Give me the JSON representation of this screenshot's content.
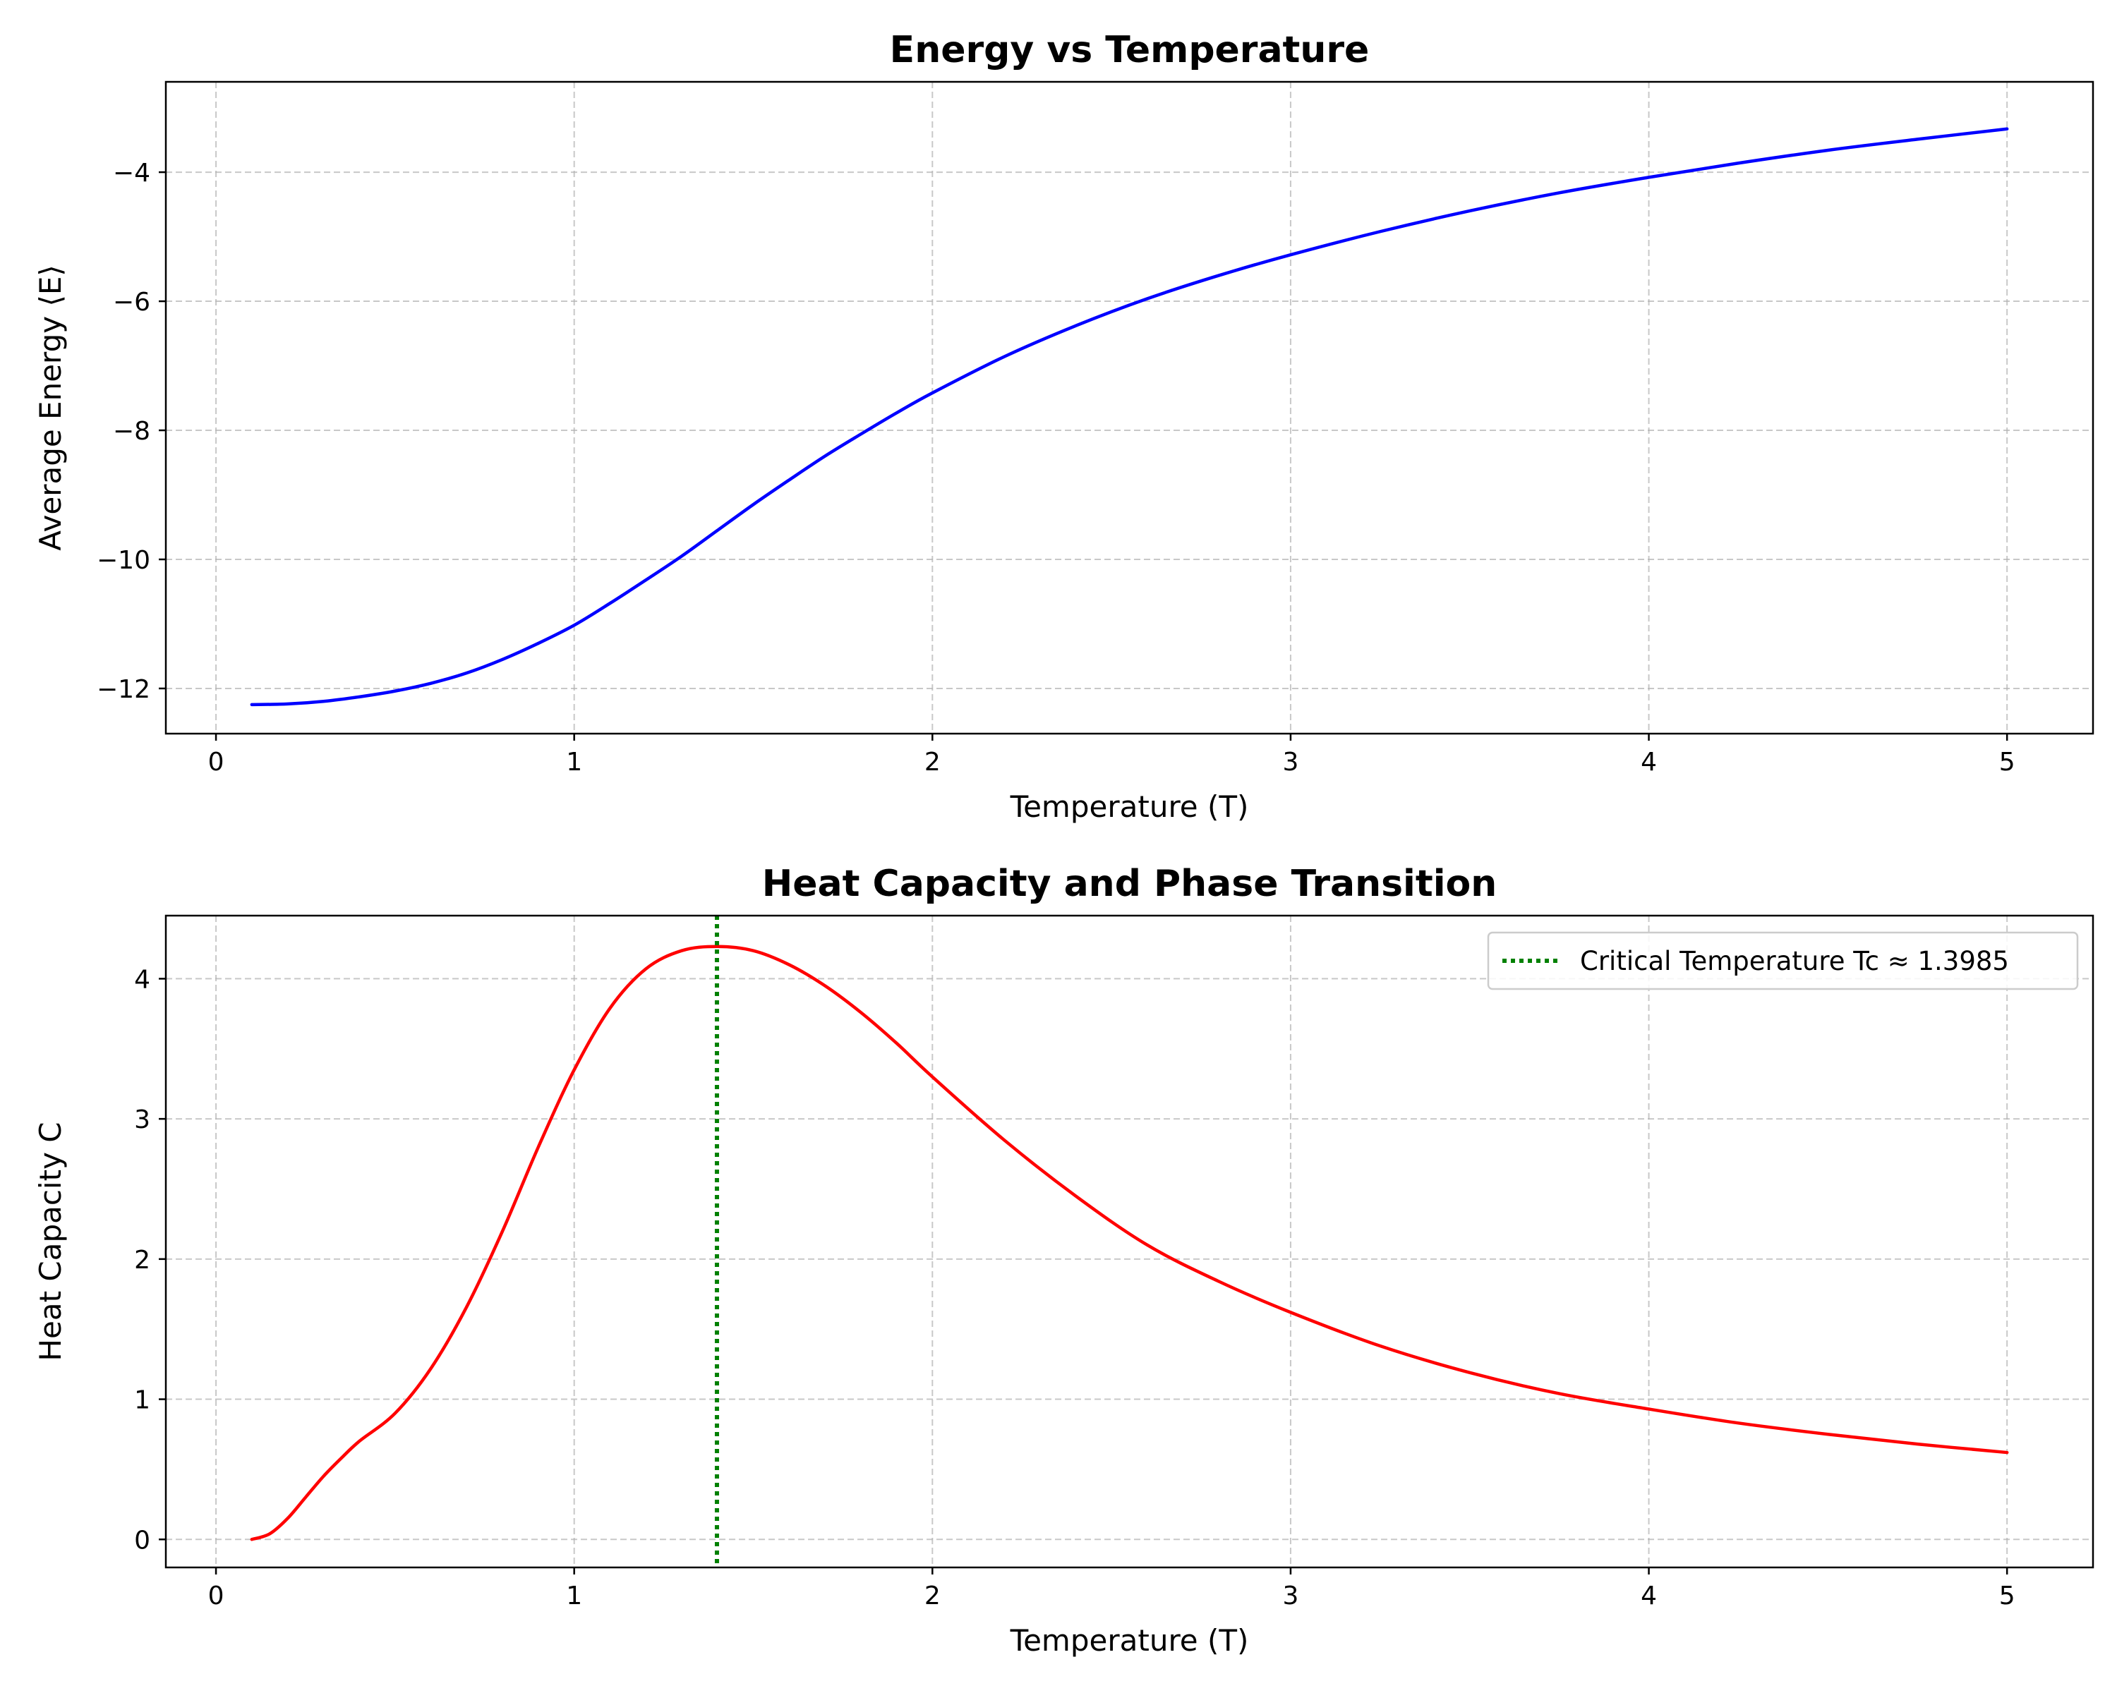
{
  "chart_data": [
    {
      "type": "line",
      "title": "Energy vs Temperature",
      "xlabel": "Temperature (T)",
      "ylabel": "Average Energy ⟨E⟩",
      "xlim": [
        -0.14,
        5.24
      ],
      "ylim": [
        -12.7,
        -2.6
      ],
      "xticks": [
        0,
        1,
        2,
        3,
        4,
        5
      ],
      "xtick_labels": [
        "0",
        "1",
        "2",
        "3",
        "4",
        "5"
      ],
      "yticks": [
        -12,
        -10,
        -8,
        -6,
        -4
      ],
      "ytick_labels": [
        "−12",
        "−10",
        "−8",
        "−6",
        "−4"
      ],
      "grid": true,
      "series": [
        {
          "color": "#0000ff",
          "x": [
            0.1,
            0.2,
            0.3,
            0.4,
            0.5,
            0.6,
            0.7,
            0.8,
            0.9,
            1.0,
            1.1,
            1.2,
            1.3,
            1.4,
            1.5,
            1.6,
            1.7,
            1.8,
            1.9,
            2.0,
            2.2,
            2.4,
            2.6,
            2.8,
            3.0,
            3.25,
            3.5,
            3.75,
            4.0,
            4.25,
            4.5,
            4.75,
            5.0
          ],
          "y": [
            -12.25,
            -12.24,
            -12.2,
            -12.13,
            -12.04,
            -11.92,
            -11.76,
            -11.55,
            -11.3,
            -11.02,
            -10.68,
            -10.32,
            -9.95,
            -9.55,
            -9.15,
            -8.77,
            -8.4,
            -8.06,
            -7.73,
            -7.42,
            -6.86,
            -6.38,
            -5.96,
            -5.6,
            -5.28,
            -4.92,
            -4.6,
            -4.32,
            -4.08,
            -3.86,
            -3.66,
            -3.49,
            -3.33
          ]
        }
      ]
    },
    {
      "type": "line",
      "title": "Heat Capacity and Phase Transition",
      "xlabel": "Temperature (T)",
      "ylabel": "Heat Capacity C",
      "xlim": [
        -0.14,
        5.24
      ],
      "ylim": [
        -0.2,
        4.45
      ],
      "xticks": [
        0,
        1,
        2,
        3,
        4,
        5
      ],
      "xtick_labels": [
        "0",
        "1",
        "2",
        "3",
        "4",
        "5"
      ],
      "yticks": [
        0,
        1,
        2,
        3,
        4
      ],
      "ytick_labels": [
        "0",
        "1",
        "2",
        "3",
        "4"
      ],
      "grid": true,
      "legend_position": "top-right",
      "series": [
        {
          "color": "#ff0000",
          "x": [
            0.1,
            0.15,
            0.2,
            0.25,
            0.3,
            0.35,
            0.4,
            0.5,
            0.6,
            0.7,
            0.8,
            0.9,
            1.0,
            1.1,
            1.2,
            1.3,
            1.4,
            1.5,
            1.6,
            1.7,
            1.8,
            1.9,
            2.0,
            2.2,
            2.4,
            2.6,
            2.8,
            3.0,
            3.25,
            3.5,
            3.75,
            4.0,
            4.25,
            4.5,
            4.75,
            5.0
          ],
          "y": [
            0.0,
            0.04,
            0.15,
            0.3,
            0.45,
            0.58,
            0.7,
            0.9,
            1.22,
            1.66,
            2.2,
            2.8,
            3.35,
            3.79,
            4.07,
            4.2,
            4.23,
            4.2,
            4.1,
            3.95,
            3.76,
            3.54,
            3.3,
            2.85,
            2.45,
            2.1,
            1.84,
            1.62,
            1.38,
            1.19,
            1.04,
            0.93,
            0.83,
            0.75,
            0.68,
            0.62
          ]
        }
      ],
      "reference_line": {
        "x": 1.3985,
        "color": "#008000",
        "style": "dotted",
        "label": "Critical Temperature Tc ≈ 1.3985"
      }
    }
  ]
}
